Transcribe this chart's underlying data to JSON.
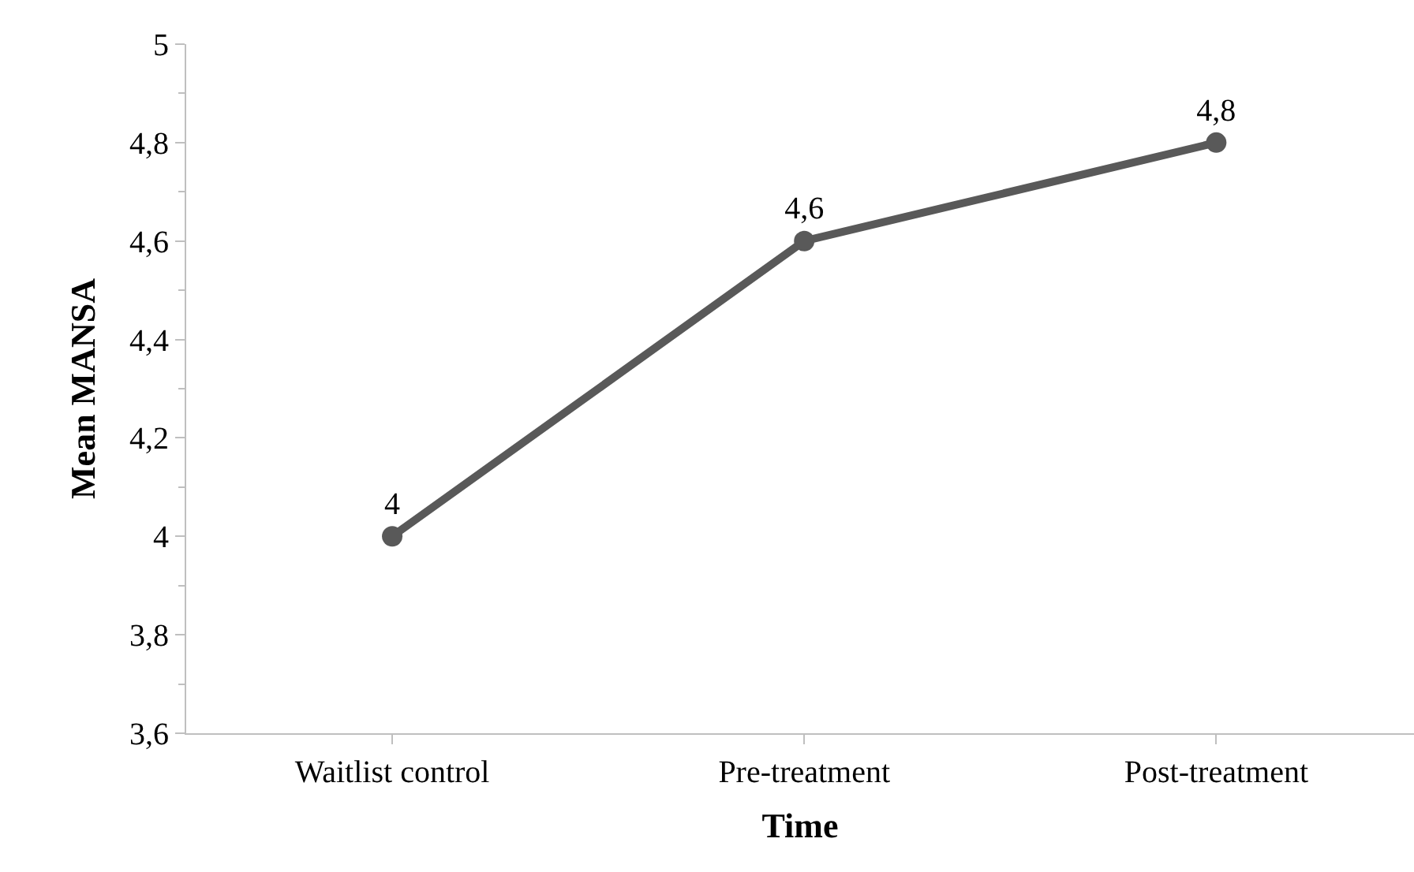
{
  "chart_data": {
    "type": "line",
    "xlabel": "Time",
    "ylabel": "Mean MANSA",
    "categories": [
      "Waitlist control",
      "Pre-treatment",
      "Post-treatment"
    ],
    "series": [
      {
        "color": "#595959",
        "values": [
          4,
          4.6,
          4.8
        ],
        "value_labels": [
          "4",
          "4,6",
          "4,8"
        ]
      }
    ],
    "ylim": [
      3.6,
      5
    ],
    "yticks": [
      {
        "value": 3.6,
        "label": "3,6"
      },
      {
        "value": 3.8,
        "label": "3,8"
      },
      4,
      {
        "value": 4.2,
        "label": "4,2"
      },
      {
        "value": 4.4,
        "label": "4,4"
      },
      {
        "value": 4.6,
        "label": "4,6"
      },
      {
        "value": 4.8,
        "label": "4,8"
      },
      5
    ],
    "marker": "circle",
    "line_style": "solid"
  }
}
